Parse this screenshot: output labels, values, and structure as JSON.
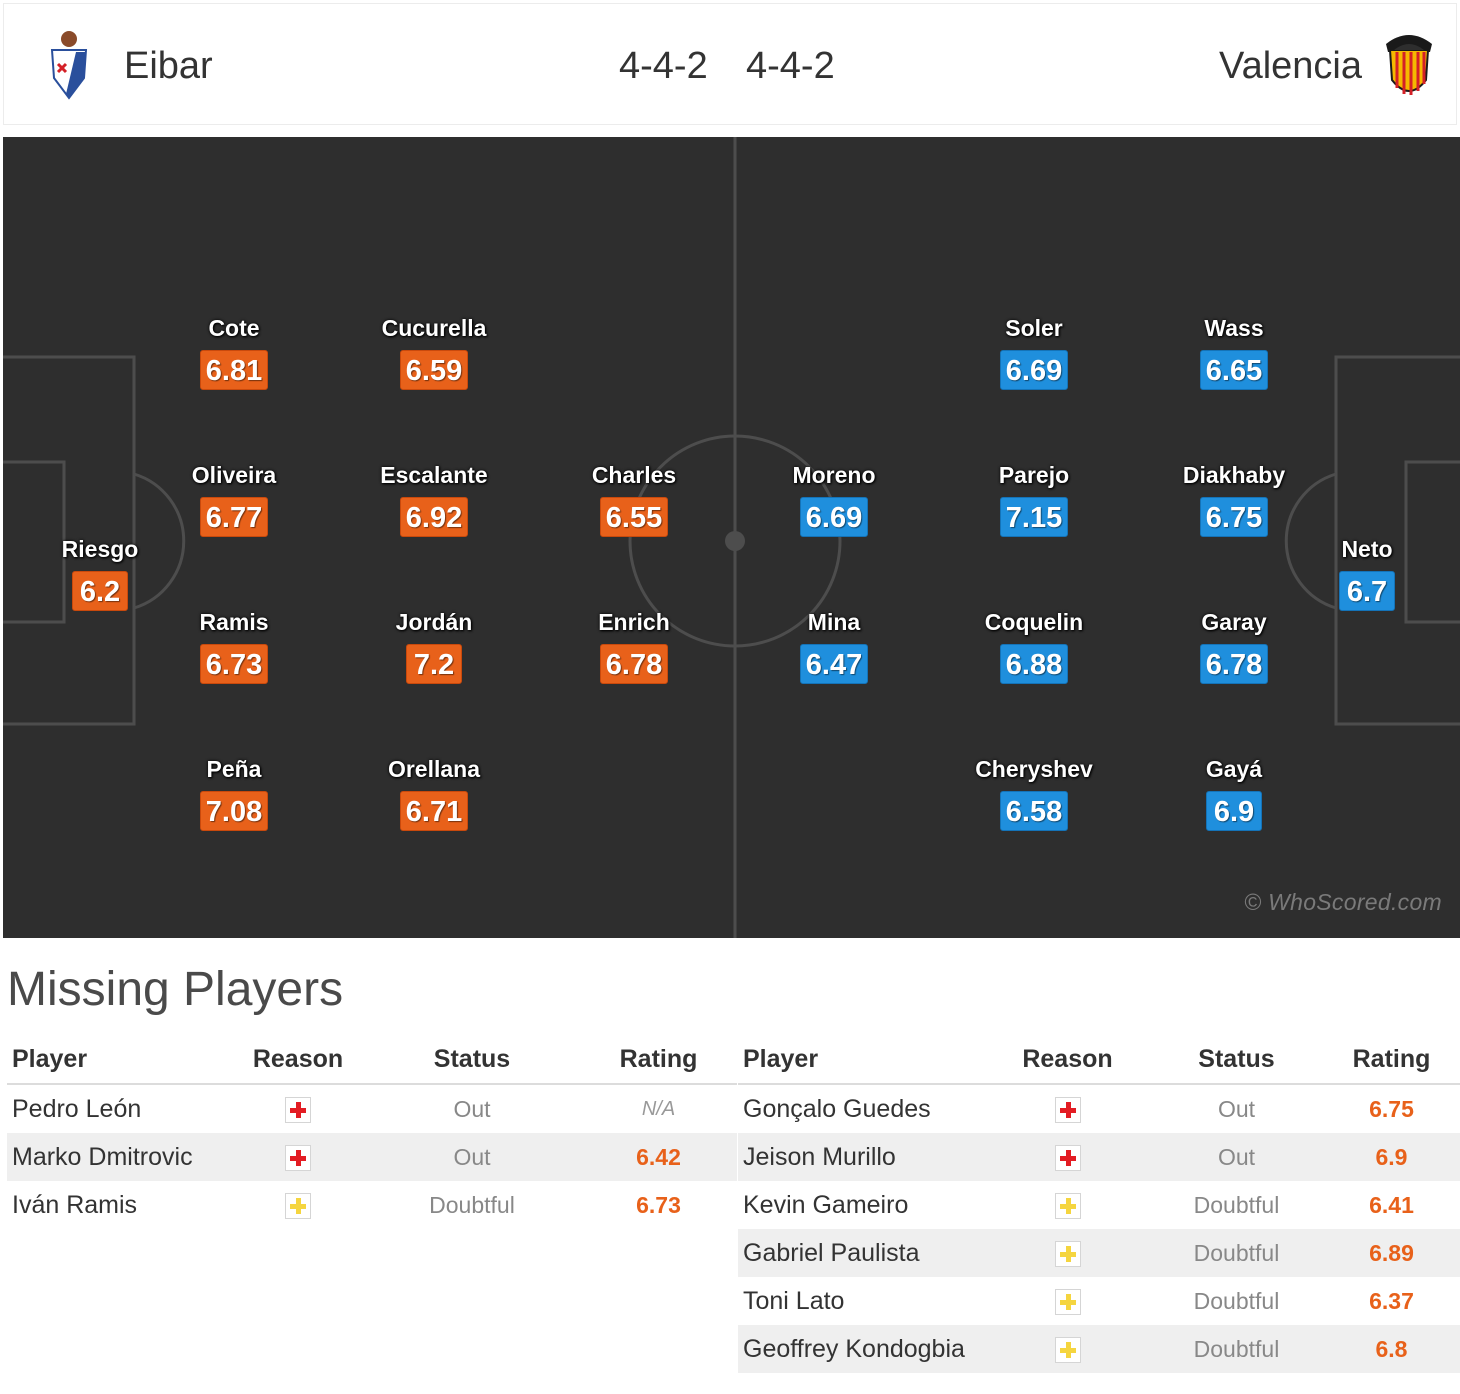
{
  "header": {
    "home_team": "Eibar",
    "away_team": "Valencia",
    "home_formation": "4-4-2",
    "away_formation": "4-4-2",
    "home_crest_icon": "eibar-crest-icon",
    "away_crest_icon": "valencia-crest-icon"
  },
  "pitch": {
    "watermark": "© WhoScored.com",
    "home_rating_color": "#e8611a",
    "away_rating_color": "#1f8fdd",
    "home_players": [
      {
        "name": "Riesgo",
        "rating": "6.2"
      },
      {
        "name": "Cote",
        "rating": "6.81"
      },
      {
        "name": "Oliveira",
        "rating": "6.77"
      },
      {
        "name": "Ramis",
        "rating": "6.73"
      },
      {
        "name": "Peña",
        "rating": "7.08"
      },
      {
        "name": "Cucurella",
        "rating": "6.59"
      },
      {
        "name": "Escalante",
        "rating": "6.92"
      },
      {
        "name": "Jordán",
        "rating": "7.2"
      },
      {
        "name": "Orellana",
        "rating": "6.71"
      },
      {
        "name": "Charles",
        "rating": "6.55"
      },
      {
        "name": "Enrich",
        "rating": "6.78"
      }
    ],
    "away_players": [
      {
        "name": "Neto",
        "rating": "6.7"
      },
      {
        "name": "Wass",
        "rating": "6.65"
      },
      {
        "name": "Diakhaby",
        "rating": "6.75"
      },
      {
        "name": "Garay",
        "rating": "6.78"
      },
      {
        "name": "Gayá",
        "rating": "6.9"
      },
      {
        "name": "Soler",
        "rating": "6.69"
      },
      {
        "name": "Parejo",
        "rating": "7.15"
      },
      {
        "name": "Coquelin",
        "rating": "6.88"
      },
      {
        "name": "Cheryshev",
        "rating": "6.58"
      },
      {
        "name": "Moreno",
        "rating": "6.69"
      },
      {
        "name": "Mina",
        "rating": "6.47"
      }
    ]
  },
  "missing": {
    "title": "Missing Players",
    "columns": {
      "player": "Player",
      "reason": "Reason",
      "status": "Status",
      "rating": "Rating"
    },
    "home": [
      {
        "player": "Pedro León",
        "reason": "injury",
        "status": "Out",
        "rating": "N/A"
      },
      {
        "player": "Marko Dmitrovic",
        "reason": "injury",
        "status": "Out",
        "rating": "6.42"
      },
      {
        "player": "Iván Ramis",
        "reason": "doubt",
        "status": "Doubtful",
        "rating": "6.73"
      }
    ],
    "away": [
      {
        "player": "Gonçalo Guedes",
        "reason": "injury",
        "status": "Out",
        "rating": "6.75"
      },
      {
        "player": "Jeison Murillo",
        "reason": "injury",
        "status": "Out",
        "rating": "6.9"
      },
      {
        "player": "Kevin Gameiro",
        "reason": "doubt",
        "status": "Doubtful",
        "rating": "6.41"
      },
      {
        "player": "Gabriel Paulista",
        "reason": "doubt",
        "status": "Doubtful",
        "rating": "6.89"
      },
      {
        "player": "Toni Lato",
        "reason": "doubt",
        "status": "Doubtful",
        "rating": "6.37"
      },
      {
        "player": "Geoffrey Kondogbia",
        "reason": "doubt",
        "status": "Doubtful",
        "rating": "6.8"
      }
    ]
  }
}
